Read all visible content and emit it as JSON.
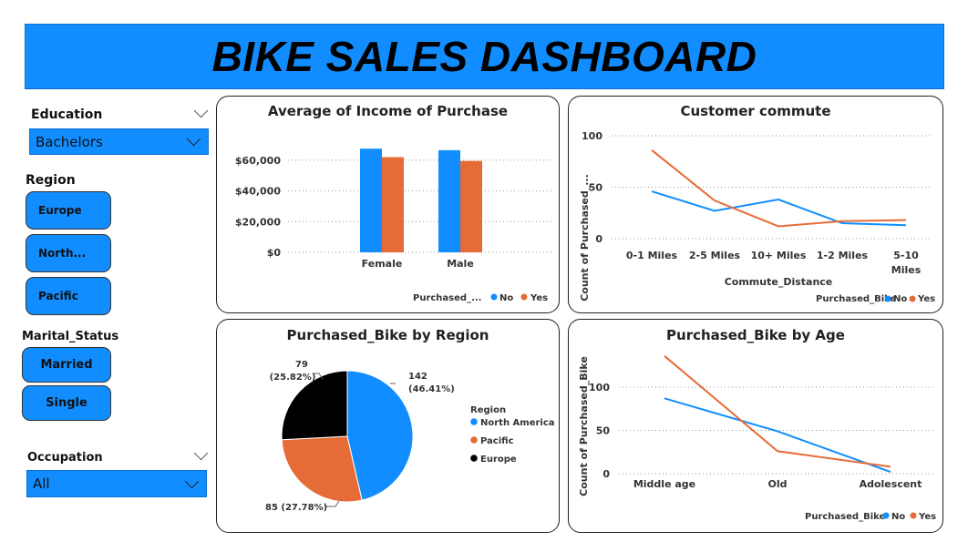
{
  "dashboard": {
    "title": "BIKE SALES DASHBOARD"
  },
  "colors": {
    "blue": "#118DFF",
    "orange": "#E66C37",
    "black": "#000000"
  },
  "filters": {
    "education": {
      "label": "Education",
      "selected": "Bachelors"
    },
    "region": {
      "label": "Region",
      "options": [
        "Europe",
        "North...",
        "Pacific"
      ]
    },
    "marital_status": {
      "label": "Marital_Status",
      "options": [
        "Married",
        "Single"
      ]
    },
    "occupation": {
      "label": "Occupation",
      "selected": "All"
    }
  },
  "chart_data": [
    {
      "id": "income",
      "type": "bar",
      "title": "Average of Income of Purchase",
      "categories": [
        "Female",
        "Male"
      ],
      "y_ticks": [
        "$0",
        "$20,000",
        "$40,000",
        "$60,000"
      ],
      "ylim": [
        0,
        70000
      ],
      "series": [
        {
          "name": "No",
          "values": [
            67500,
            66500
          ]
        },
        {
          "name": "Yes",
          "values": [
            62000,
            59500
          ]
        }
      ],
      "legend_title": "Purchased_...",
      "legend_position": "bottom-right",
      "grid": true
    },
    {
      "id": "commute",
      "type": "line",
      "title": "Customer commute",
      "x": [
        "0-1 Miles",
        "2-5 Miles",
        "10+ Miles",
        "1-2 Miles",
        "5-10 Miles"
      ],
      "x_labels": [
        "0-1 Miles",
        "2-5 Miles",
        "10+ Miles",
        "1-2 Miles",
        "5-10",
        "Miles"
      ],
      "ylabel": "Count of Purchased_...",
      "xlabel": "Commute_Distance",
      "y_ticks": [
        "0",
        "50",
        "100"
      ],
      "ylim": [
        0,
        100
      ],
      "series": [
        {
          "name": "No",
          "values": [
            46,
            27,
            38,
            15,
            13
          ]
        },
        {
          "name": "Yes",
          "values": [
            86,
            37,
            12,
            17,
            18
          ]
        }
      ],
      "legend_title": "Purchased_Bike",
      "legend_position": "bottom-right",
      "grid": true
    },
    {
      "id": "region",
      "type": "pie",
      "title": "Purchased_Bike by Region",
      "slices": [
        {
          "name": "North America",
          "value": 142,
          "label_value": "142",
          "label_pct": "(46.41%)"
        },
        {
          "name": "Pacific",
          "value": 85,
          "label_value": "85 (27.78%)",
          "label_pct": ""
        },
        {
          "name": "Europe",
          "value": 79,
          "label_value": "79",
          "label_pct": "(25.82%)"
        }
      ],
      "legend_title": "Region",
      "legend_position": "right"
    },
    {
      "id": "age",
      "type": "line",
      "title": "Purchased_Bike by Age",
      "x": [
        "Middle age",
        "Old",
        "Adolescent"
      ],
      "ylabel": "Count of Purchased_Bike",
      "y_ticks": [
        "0",
        "50",
        "100"
      ],
      "ylim": [
        0,
        100
      ],
      "series": [
        {
          "name": "No",
          "values": [
            87,
            49,
            2
          ]
        },
        {
          "name": "Yes",
          "values": [
            136,
            26,
            8
          ]
        }
      ],
      "legend_title": "Purchased_Bike",
      "legend_position": "bottom-right",
      "grid": true
    }
  ]
}
